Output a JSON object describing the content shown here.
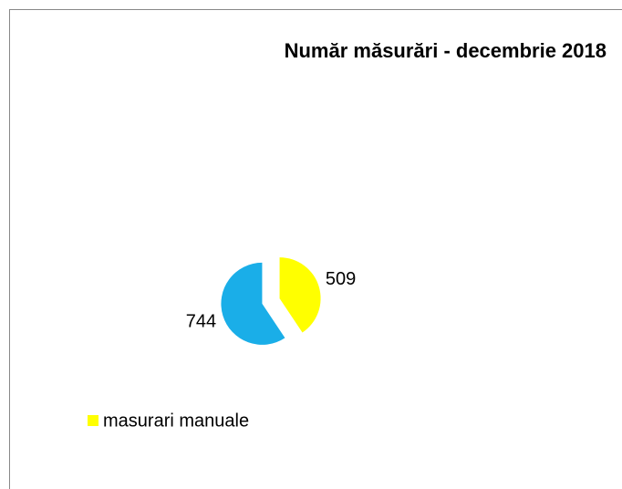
{
  "chart_data": {
    "type": "pie",
    "title": "Număr măsurări - decembrie 2018",
    "categories": [
      "masurari manuale",
      null
    ],
    "values": [
      509,
      744
    ],
    "colors": [
      "#ffff00",
      "#1aaee8"
    ],
    "legend": "bottom-left"
  }
}
